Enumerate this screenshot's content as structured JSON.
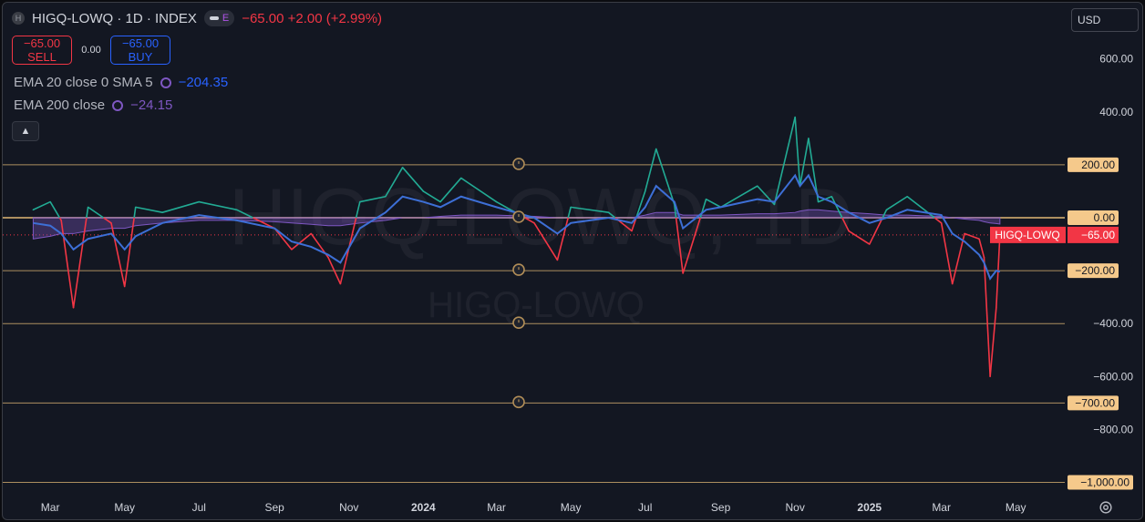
{
  "header": {
    "symbol_badge": "H",
    "title": "HIGQ-LOWQ · 1D · INDEX",
    "e_badge": "E",
    "change": "−65.00 +2.00 (+2.99%)"
  },
  "trade": {
    "sell_price": "−65.00",
    "sell_label": "SELL",
    "spread": "0.00",
    "buy_price": "−65.00",
    "buy_label": "BUY"
  },
  "indicators": [
    {
      "label": "EMA 20 close 0 SMA 5",
      "value": "−204.35"
    },
    {
      "label": "EMA 200 close",
      "value": "−24.15"
    }
  ],
  "currency": "USD",
  "watermark": {
    "big": "HIGQ-LOWQ, 1D",
    "small": "HIGQ-LOWQ"
  },
  "price_axis": {
    "ticks": [
      "600.00",
      "400.00",
      "−400.00",
      "−600.00",
      "−800.00"
    ],
    "badges": [
      "200.00",
      "0.00",
      "−200.00",
      "−700.00",
      "−1,000.00"
    ],
    "symbol_tag": "HIGQ-LOWQ",
    "last_price": "−65.00"
  },
  "time_axis": [
    "Mar",
    "May",
    "Jul",
    "Sep",
    "Nov",
    "2024",
    "Mar",
    "May",
    "Jul",
    "Sep",
    "Nov",
    "2025",
    "Mar",
    "May"
  ],
  "colors": {
    "up": "#22ab94",
    "down": "#f23645",
    "ema20": "#3d6fd6",
    "ema200": "#7e57c2",
    "level": "#c9a46b",
    "badge": "#f5c98b"
  },
  "chart_data": {
    "type": "line",
    "series_note": "index line colored green above 0 and red below 0",
    "ylim": [
      -1050,
      720
    ],
    "horizontal_levels": [
      200,
      0,
      -200,
      -400,
      -700,
      -1000
    ],
    "dotted_level": -65,
    "x": [
      "2023-02-15",
      "2023-03-01",
      "2023-03-10",
      "2023-03-20",
      "2023-04-01",
      "2023-04-20",
      "2023-05-01",
      "2023-05-10",
      "2023-06-01",
      "2023-07-01",
      "2023-08-01",
      "2023-09-01",
      "2023-09-15",
      "2023-10-01",
      "2023-10-15",
      "2023-10-25",
      "2023-11-10",
      "2023-12-01",
      "2023-12-15",
      "2024-01-01",
      "2024-01-15",
      "2024-02-01",
      "2024-03-01",
      "2024-04-01",
      "2024-04-20",
      "2024-05-01",
      "2024-06-01",
      "2024-06-20",
      "2024-07-01",
      "2024-07-10",
      "2024-07-25",
      "2024-08-01",
      "2024-08-20",
      "2024-09-01",
      "2024-10-01",
      "2024-10-15",
      "2024-11-01",
      "2024-11-05",
      "2024-11-12",
      "2024-11-20",
      "2024-12-01",
      "2024-12-15",
      "2025-01-01",
      "2025-01-15",
      "2025-02-01",
      "2025-03-01",
      "2025-03-10",
      "2025-03-20",
      "2025-04-01",
      "2025-04-05",
      "2025-04-10",
      "2025-04-15",
      "2025-04-18"
    ],
    "values": [
      30,
      60,
      -10,
      -340,
      40,
      -20,
      -260,
      40,
      20,
      60,
      30,
      -40,
      -120,
      -60,
      -150,
      -250,
      60,
      80,
      190,
      100,
      60,
      150,
      60,
      -20,
      -160,
      40,
      20,
      -50,
      100,
      260,
      50,
      -210,
      70,
      40,
      120,
      50,
      380,
      120,
      300,
      60,
      80,
      -50,
      -100,
      30,
      80,
      -20,
      -250,
      -60,
      -80,
      -150,
      -600,
      -340,
      -65
    ],
    "ema20": [
      -20,
      -30,
      -60,
      -120,
      -80,
      -60,
      -120,
      -70,
      -20,
      10,
      -10,
      -40,
      -90,
      -110,
      -140,
      -170,
      -40,
      20,
      80,
      60,
      40,
      80,
      40,
      0,
      -60,
      -20,
      0,
      -20,
      40,
      120,
      60,
      -40,
      30,
      40,
      70,
      60,
      160,
      120,
      160,
      80,
      60,
      20,
      -20,
      0,
      30,
      10,
      -60,
      -90,
      -140,
      -170,
      -230,
      -200,
      -204
    ],
    "ema200_band": [
      -80,
      -70,
      -60,
      -60,
      -50,
      -40,
      -40,
      -30,
      -20,
      -10,
      -10,
      -15,
      -20,
      -25,
      -30,
      -30,
      -20,
      -10,
      0,
      0,
      5,
      10,
      10,
      5,
      0,
      0,
      0,
      0,
      10,
      20,
      20,
      10,
      10,
      10,
      15,
      15,
      20,
      25,
      30,
      30,
      25,
      20,
      15,
      10,
      10,
      5,
      0,
      -5,
      -10,
      -15,
      -20,
      -22,
      -24
    ]
  }
}
